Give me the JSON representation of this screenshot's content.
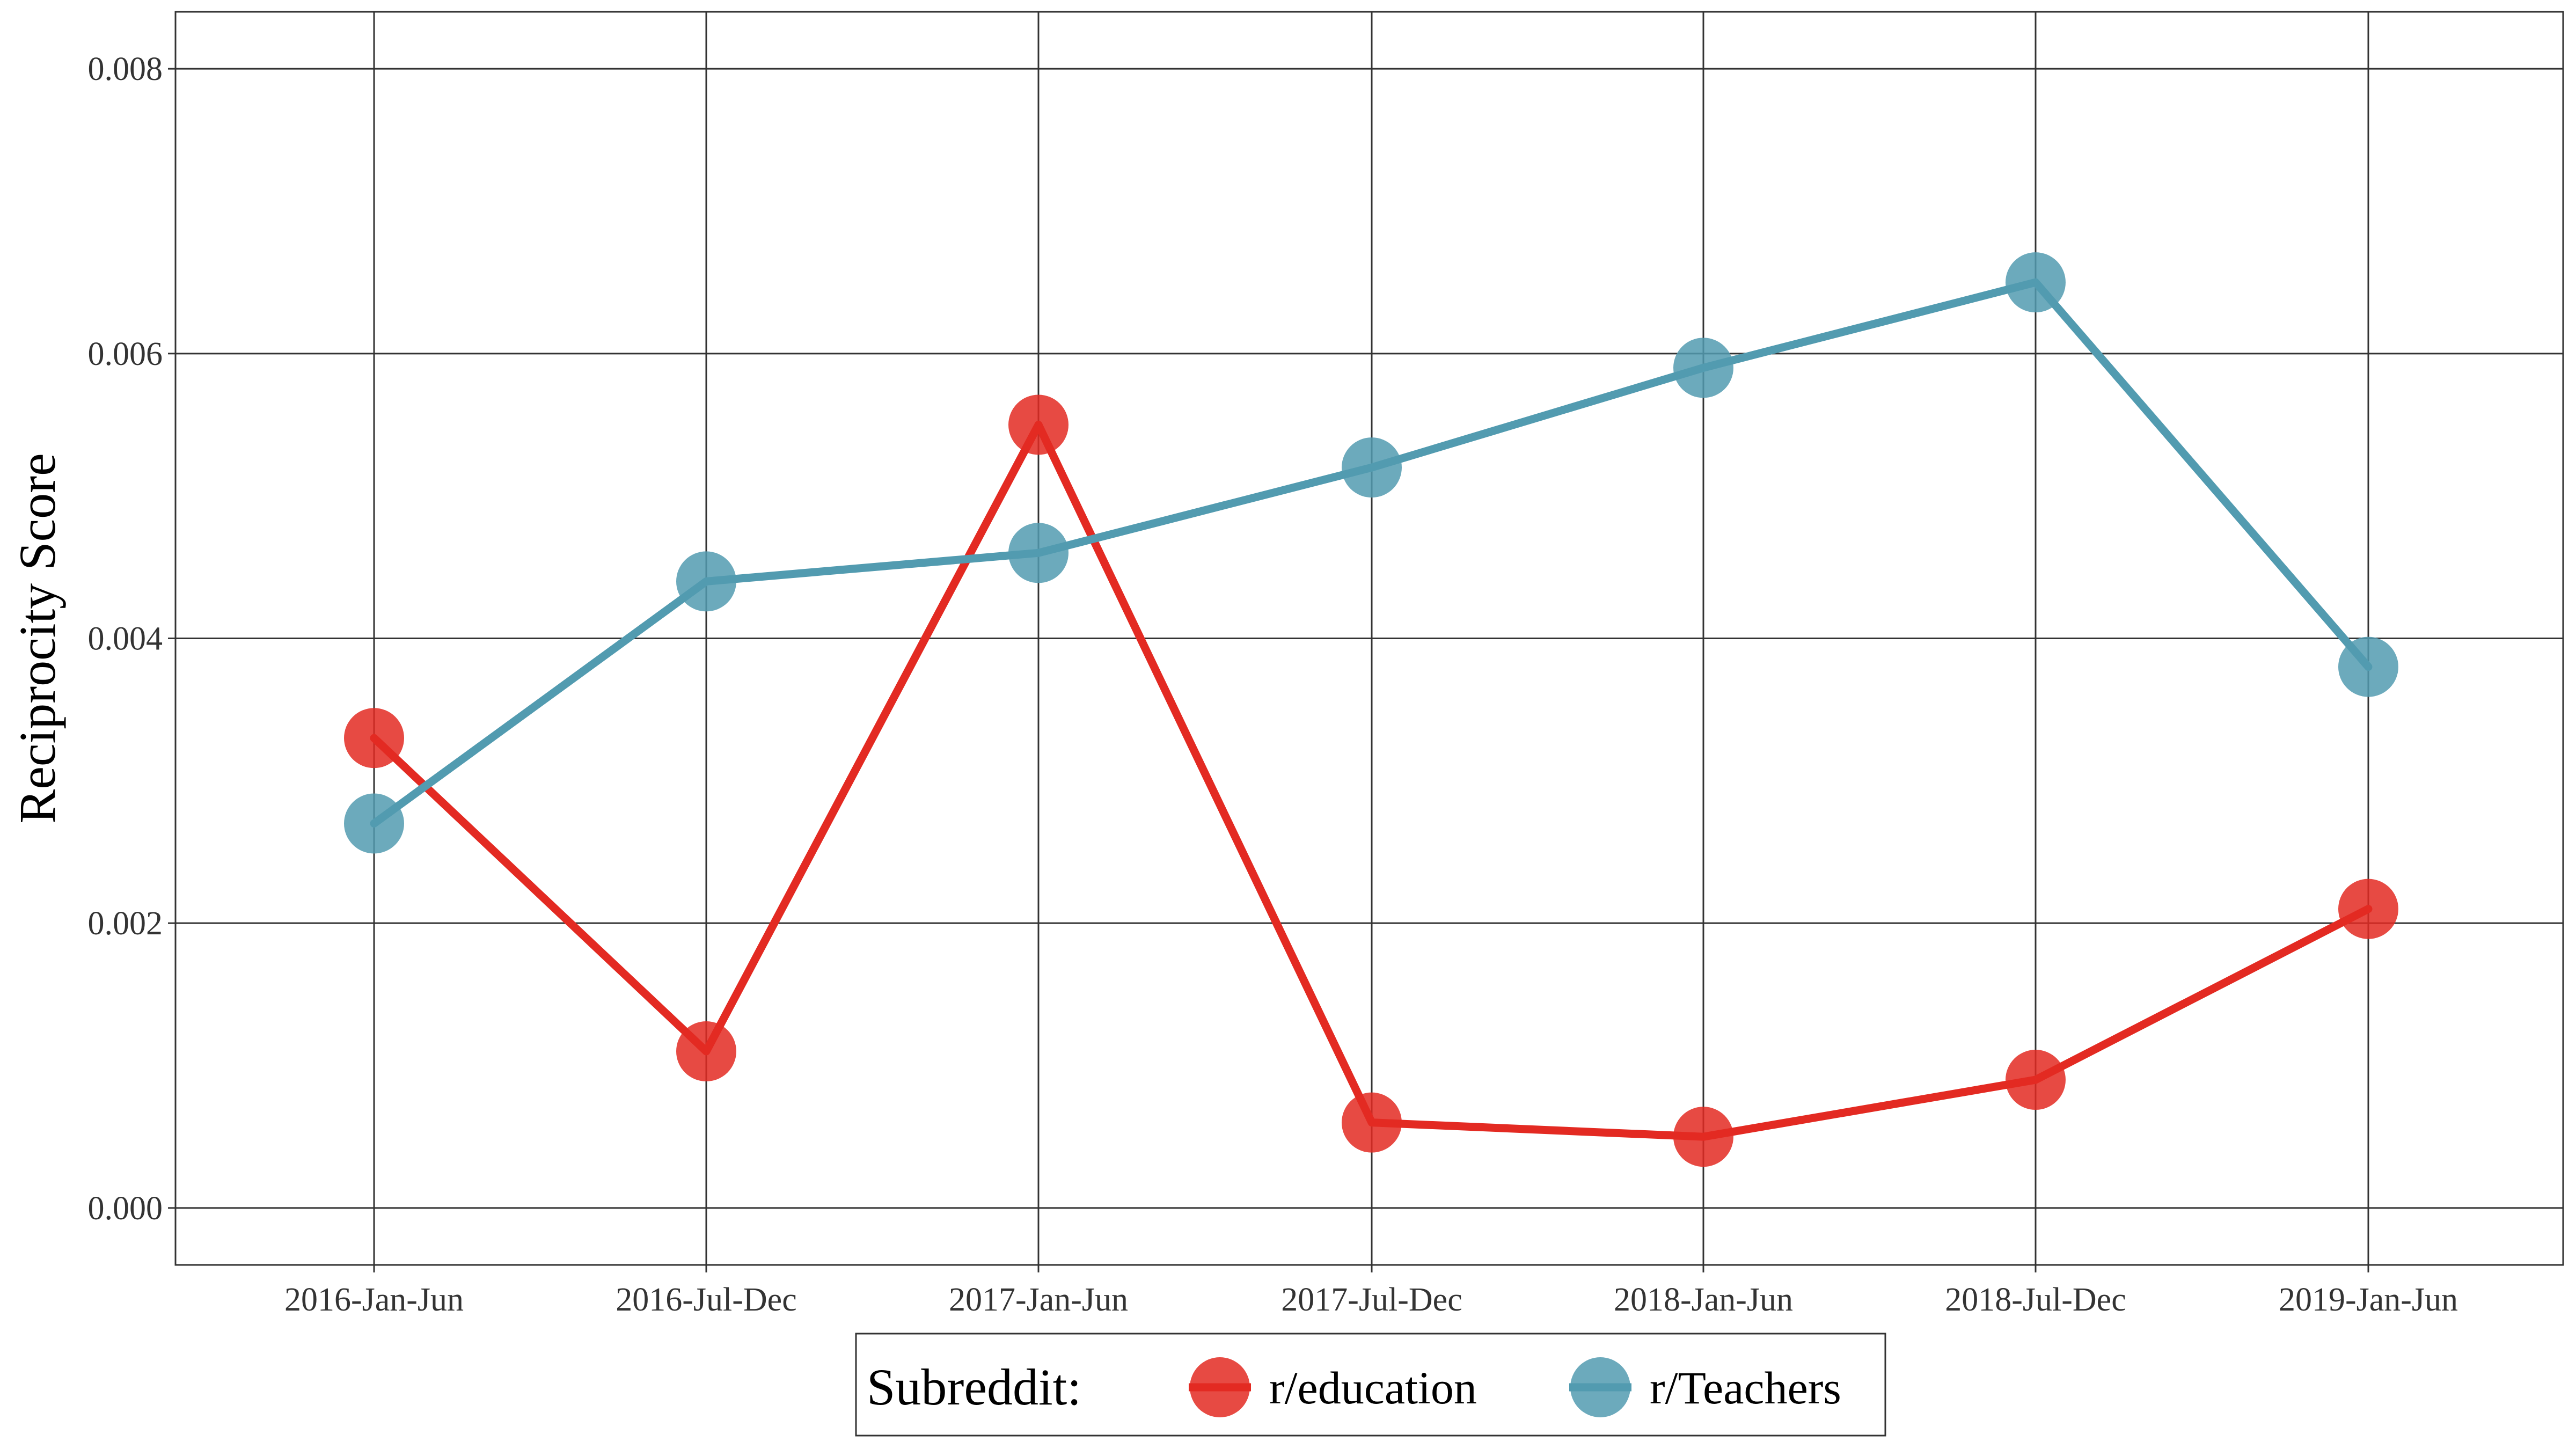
{
  "chart_data": {
    "type": "line",
    "title": "",
    "xlabel": "",
    "ylabel": "Reciprocity Score",
    "categories": [
      "2016-Jan-Jun",
      "2016-Jul-Dec",
      "2017-Jan-Jun",
      "2017-Jul-Dec",
      "2018-Jan-Jun",
      "2018-Jul-Dec",
      "2019-Jan-Jun"
    ],
    "series": [
      {
        "name": "r/education",
        "color": "#E32A22",
        "values": [
          0.0033,
          0.0011,
          0.0055,
          0.0006,
          0.0005,
          0.0009,
          0.0021
        ]
      },
      {
        "name": "r/Teachers",
        "color": "#529BB0",
        "values": [
          0.0027,
          0.0044,
          0.0046,
          0.0052,
          0.0059,
          0.0065,
          0.0038
        ]
      }
    ],
    "ylim": [
      -0.0004,
      0.0084
    ],
    "yticks": [
      0.0,
      0.002,
      0.004,
      0.006,
      0.008
    ],
    "ytick_labels": [
      "0.000",
      "0.002",
      "0.004",
      "0.006",
      "0.008"
    ],
    "grid": true,
    "legend": {
      "title": "Subreddit:",
      "position": "bottom"
    }
  }
}
